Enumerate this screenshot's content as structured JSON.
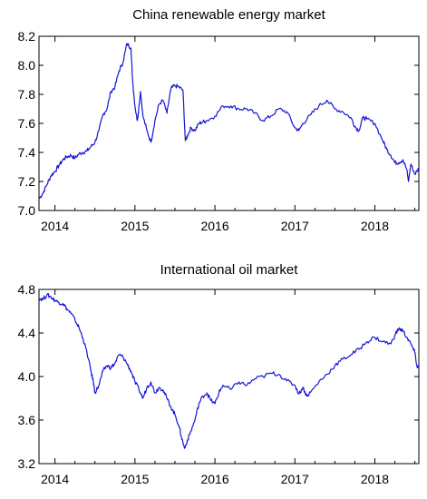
{
  "chart_data": [
    {
      "type": "line",
      "title": "China renewable energy market",
      "xlabel": "",
      "ylabel": "",
      "x_ticks": [
        "2014",
        "2015",
        "2016",
        "2017",
        "2018"
      ],
      "x_tick_values": [
        2014.0,
        2015.0,
        2016.0,
        2017.0,
        2018.0
      ],
      "xlim": [
        2013.8,
        2018.55
      ],
      "y_ticks": [
        "7.0",
        "7.2",
        "7.4",
        "7.6",
        "7.8",
        "8.0",
        "8.2"
      ],
      "ylim": [
        7.0,
        8.2
      ],
      "grid": false,
      "legend": "none",
      "series": [
        {
          "color": "#1515d6",
          "x": [
            2013.8,
            2013.85,
            2013.9,
            2013.95,
            2014.0,
            2014.05,
            2014.1,
            2014.15,
            2014.2,
            2014.25,
            2014.3,
            2014.35,
            2014.4,
            2014.45,
            2014.5,
            2014.55,
            2014.6,
            2014.65,
            2014.7,
            2014.75,
            2014.8,
            2014.85,
            2014.9,
            2014.95,
            2014.97,
            2015.0,
            2015.03,
            2015.07,
            2015.1,
            2015.15,
            2015.2,
            2015.25,
            2015.3,
            2015.35,
            2015.4,
            2015.45,
            2015.5,
            2015.55,
            2015.6,
            2015.63,
            2015.66,
            2015.7,
            2015.75,
            2015.8,
            2015.85,
            2015.9,
            2016.0,
            2016.1,
            2016.2,
            2016.3,
            2016.4,
            2016.5,
            2016.6,
            2016.7,
            2016.8,
            2016.9,
            2017.0,
            2017.05,
            2017.1,
            2017.2,
            2017.3,
            2017.4,
            2017.5,
            2017.6,
            2017.7,
            2017.75,
            2017.8,
            2017.85,
            2017.9,
            2018.0,
            2018.1,
            2018.15,
            2018.2,
            2018.25,
            2018.3,
            2018.35,
            2018.4,
            2018.42,
            2018.45,
            2018.5,
            2018.55
          ],
          "values": [
            7.08,
            7.12,
            7.18,
            7.24,
            7.27,
            7.31,
            7.35,
            7.37,
            7.38,
            7.36,
            7.39,
            7.4,
            7.41,
            7.44,
            7.47,
            7.55,
            7.66,
            7.7,
            7.82,
            7.85,
            7.96,
            8.02,
            8.15,
            8.12,
            7.9,
            7.72,
            7.62,
            7.82,
            7.65,
            7.55,
            7.47,
            7.62,
            7.73,
            7.76,
            7.67,
            7.84,
            7.86,
            7.85,
            7.83,
            7.48,
            7.52,
            7.57,
            7.55,
            7.6,
            7.61,
            7.62,
            7.65,
            7.72,
            7.72,
            7.7,
            7.7,
            7.67,
            7.62,
            7.65,
            7.7,
            7.68,
            7.57,
            7.55,
            7.6,
            7.66,
            7.72,
            7.76,
            7.7,
            7.68,
            7.64,
            7.58,
            7.55,
            7.64,
            7.63,
            7.6,
            7.48,
            7.42,
            7.38,
            7.33,
            7.33,
            7.35,
            7.28,
            7.2,
            7.32,
            7.25,
            7.29
          ]
        }
      ]
    },
    {
      "type": "line",
      "title": "International oil market",
      "xlabel": "",
      "ylabel": "",
      "x_ticks": [
        "2014",
        "2015",
        "2016",
        "2017",
        "2018"
      ],
      "x_tick_values": [
        2014.0,
        2015.0,
        2016.0,
        2017.0,
        2018.0
      ],
      "xlim": [
        2013.8,
        2018.55
      ],
      "y_ticks": [
        "3.2",
        "3.6",
        "4.0",
        "4.4",
        "4.8"
      ],
      "ylim": [
        3.2,
        4.8
      ],
      "grid": false,
      "legend": "none",
      "series": [
        {
          "color": "#1515d6",
          "x": [
            2013.8,
            2013.85,
            2013.9,
            2013.95,
            2014.0,
            2014.05,
            2014.1,
            2014.15,
            2014.2,
            2014.25,
            2014.3,
            2014.35,
            2014.4,
            2014.45,
            2014.48,
            2014.5,
            2014.55,
            2014.6,
            2014.65,
            2014.7,
            2014.75,
            2014.8,
            2014.85,
            2014.9,
            2014.95,
            2015.0,
            2015.05,
            2015.1,
            2015.15,
            2015.2,
            2015.25,
            2015.3,
            2015.35,
            2015.4,
            2015.45,
            2015.5,
            2015.55,
            2015.58,
            2015.62,
            2015.66,
            2015.7,
            2015.75,
            2015.8,
            2015.85,
            2015.9,
            2015.95,
            2016.0,
            2016.05,
            2016.1,
            2016.2,
            2016.3,
            2016.4,
            2016.5,
            2016.6,
            2016.7,
            2016.8,
            2016.9,
            2017.0,
            2017.05,
            2017.1,
            2017.15,
            2017.2,
            2017.3,
            2017.4,
            2017.5,
            2017.6,
            2017.7,
            2017.8,
            2017.9,
            2018.0,
            2018.1,
            2018.2,
            2018.25,
            2018.3,
            2018.35,
            2018.4,
            2018.45,
            2018.5,
            2018.53,
            2018.55
          ],
          "values": [
            4.72,
            4.71,
            4.75,
            4.73,
            4.7,
            4.68,
            4.67,
            4.62,
            4.58,
            4.52,
            4.45,
            4.35,
            4.22,
            4.05,
            3.95,
            3.85,
            3.92,
            4.05,
            4.1,
            4.08,
            4.12,
            4.2,
            4.18,
            4.12,
            4.05,
            3.95,
            3.88,
            3.8,
            3.9,
            3.95,
            3.85,
            3.9,
            3.88,
            3.8,
            3.72,
            3.65,
            3.55,
            3.45,
            3.34,
            3.42,
            3.5,
            3.6,
            3.75,
            3.82,
            3.85,
            3.78,
            3.75,
            3.85,
            3.92,
            3.88,
            3.95,
            3.92,
            3.98,
            4.0,
            4.03,
            4.02,
            3.96,
            3.92,
            3.84,
            3.9,
            3.82,
            3.86,
            3.95,
            4.02,
            4.1,
            4.16,
            4.2,
            4.25,
            4.32,
            4.36,
            4.32,
            4.3,
            4.38,
            4.44,
            4.42,
            4.36,
            4.3,
            4.22,
            4.08,
            4.1
          ]
        }
      ]
    }
  ]
}
